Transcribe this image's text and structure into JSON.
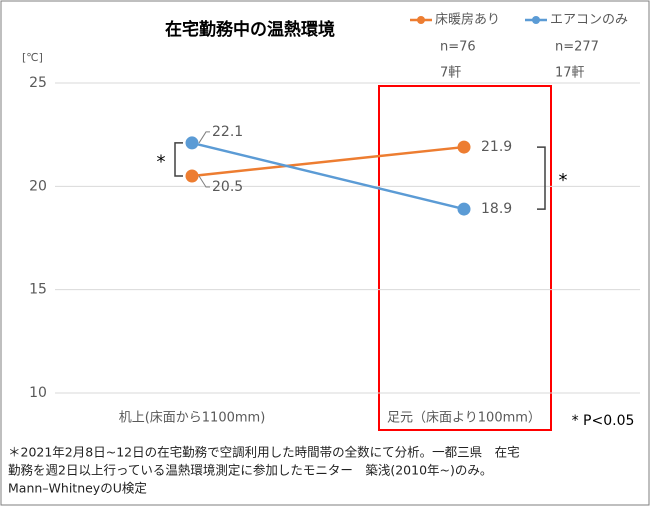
{
  "chart_data": {
    "type": "line",
    "title": "在宅勤務中の温熱環境",
    "y_unit": "[℃]",
    "categories": [
      "机上(床面から1100mm)",
      "足元（床面より100mm）"
    ],
    "series": [
      {
        "name": "床暖房あり",
        "color": "#ED7D31",
        "sample_size": "n=76",
        "households": "7軒",
        "values": [
          20.5,
          21.9
        ]
      },
      {
        "name": "エアコンのみ",
        "color": "#5B9BD5",
        "sample_size": "n=277",
        "households": "17軒",
        "values": [
          22.1,
          18.9
        ]
      }
    ],
    "ylim": [
      10,
      25
    ],
    "yticks": [
      10,
      15,
      20,
      25
    ],
    "grid": true,
    "annotations": {
      "left_significance": "*",
      "right_significance": "*",
      "significance_note": "* P<0.05"
    },
    "footnote": [
      "＊2021年2月8日~12日の在宅勤務で空調利用した時間帯の全数にて分析。一都三県　在宅",
      "勤務を週2日以上行っている温熱環境測定に参加したモニター　築浅(2010年~)のみ。",
      "Mann–WhitneyのU検定"
    ]
  }
}
